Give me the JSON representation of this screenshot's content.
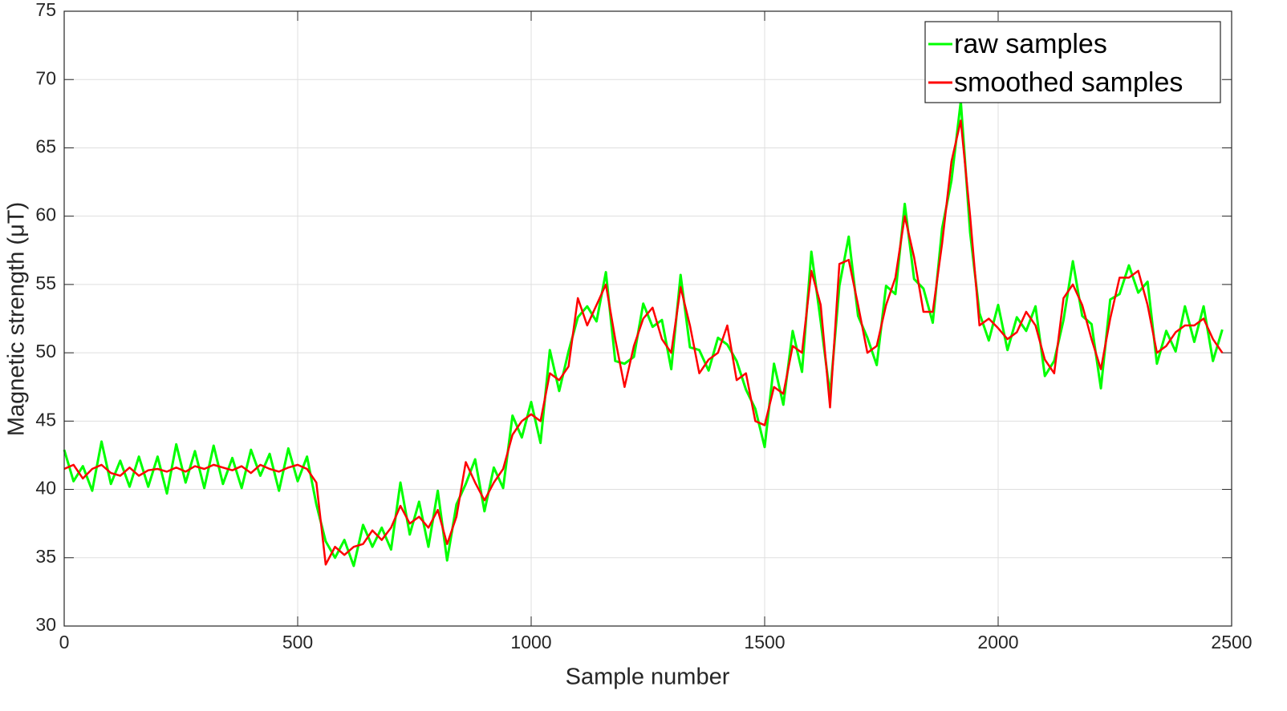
{
  "chart_data": {
    "type": "line",
    "xlabel": "Sample number",
    "ylabel": "Magnetic strength (μT)",
    "x": [
      0,
      20,
      40,
      60,
      80,
      100,
      120,
      140,
      160,
      180,
      200,
      220,
      240,
      260,
      280,
      300,
      320,
      340,
      360,
      380,
      400,
      420,
      440,
      460,
      480,
      500,
      520,
      540,
      560,
      580,
      600,
      620,
      640,
      660,
      680,
      700,
      720,
      740,
      760,
      780,
      800,
      820,
      840,
      860,
      880,
      900,
      920,
      940,
      960,
      980,
      1000,
      1020,
      1040,
      1060,
      1080,
      1100,
      1120,
      1140,
      1160,
      1180,
      1200,
      1220,
      1240,
      1260,
      1280,
      1300,
      1320,
      1340,
      1360,
      1380,
      1400,
      1420,
      1440,
      1460,
      1480,
      1500,
      1520,
      1540,
      1560,
      1580,
      1600,
      1620,
      1640,
      1660,
      1680,
      1700,
      1720,
      1740,
      1760,
      1780,
      1800,
      1820,
      1840,
      1860,
      1880,
      1900,
      1920,
      1940,
      1960,
      1980,
      2000,
      2020,
      2040,
      2060,
      2080,
      2100,
      2120,
      2140,
      2160,
      2180,
      2200,
      2220,
      2240,
      2260,
      2280,
      2300,
      2320,
      2340,
      2360,
      2380,
      2400,
      2420,
      2440,
      2460,
      2480
    ],
    "series": [
      {
        "name": "raw samples",
        "color": "#00ff00",
        "values": [
          42.9,
          40.6,
          41.7,
          39.9,
          43.5,
          40.4,
          42.1,
          40.2,
          42.4,
          40.2,
          42.4,
          39.7,
          43.3,
          40.5,
          42.8,
          40.1,
          43.2,
          40.4,
          42.3,
          40.1,
          42.9,
          41.0,
          42.6,
          39.9,
          43.0,
          40.6,
          42.4,
          38.9,
          36.2,
          35.0,
          36.3,
          34.4,
          37.4,
          35.8,
          37.2,
          35.6,
          40.5,
          36.7,
          39.1,
          35.8,
          39.9,
          34.8,
          38.9,
          40.4,
          42.2,
          38.4,
          41.6,
          40.1,
          45.4,
          43.8,
          46.4,
          43.4,
          50.2,
          47.2,
          50.1,
          52.6,
          53.4,
          52.3,
          55.9,
          49.4,
          49.2,
          49.7,
          53.6,
          51.9,
          52.4,
          48.8,
          55.7,
          50.4,
          50.2,
          48.7,
          51.1,
          50.6,
          49.4,
          47.3,
          45.9,
          43.1,
          49.2,
          46.2,
          51.6,
          48.6,
          57.4,
          52.3,
          46.9,
          54.9,
          58.5,
          52.7,
          51.1,
          49.1,
          54.9,
          54.3,
          60.9,
          55.4,
          54.7,
          52.2,
          59.1,
          62.6,
          68.4,
          58.8,
          52.9,
          50.9,
          53.5,
          50.2,
          52.6,
          51.6,
          53.4,
          48.3,
          49.4,
          52.4,
          56.7,
          52.7,
          52.1,
          47.4,
          53.9,
          54.3,
          56.4,
          54.4,
          55.2,
          49.2,
          51.6,
          50.1,
          53.4,
          50.8,
          53.4,
          49.4,
          51.7
        ]
      },
      {
        "name": "smoothed samples",
        "color": "#ff0000",
        "values": [
          41.5,
          41.8,
          40.8,
          41.5,
          41.8,
          41.2,
          41.0,
          41.6,
          41.0,
          41.4,
          41.5,
          41.3,
          41.6,
          41.3,
          41.7,
          41.5,
          41.8,
          41.6,
          41.4,
          41.7,
          41.2,
          41.8,
          41.5,
          41.3,
          41.6,
          41.8,
          41.5,
          40.5,
          34.5,
          35.8,
          35.2,
          35.8,
          36.0,
          37.0,
          36.3,
          37.2,
          38.8,
          37.5,
          38.0,
          37.2,
          38.5,
          36.0,
          38.0,
          42.0,
          40.5,
          39.2,
          40.5,
          41.5,
          44.0,
          45.0,
          45.5,
          45.0,
          48.5,
          48.0,
          49.0,
          54.0,
          52.0,
          53.5,
          55.0,
          51.0,
          47.5,
          50.5,
          52.5,
          53.3,
          51.0,
          50.0,
          54.8,
          52.0,
          48.5,
          49.5,
          50.0,
          52.0,
          48.0,
          48.5,
          45.0,
          44.7,
          47.5,
          47.0,
          50.5,
          50.0,
          56.0,
          53.5,
          46.0,
          56.5,
          56.8,
          53.5,
          50.0,
          50.5,
          53.5,
          55.5,
          60.0,
          57.0,
          53.0,
          53.0,
          58.0,
          64.0,
          67.0,
          60.0,
          52.0,
          52.5,
          51.8,
          51.0,
          51.5,
          53.0,
          52.0,
          49.5,
          48.5,
          54.0,
          55.0,
          53.5,
          51.0,
          48.8,
          52.5,
          55.5,
          55.5,
          56.0,
          53.5,
          50.0,
          50.5,
          51.5,
          52.0,
          52.0,
          52.5,
          51.0,
          50.0
        ]
      }
    ],
    "xlim": [
      0,
      2500
    ],
    "xticks": [
      0,
      500,
      1000,
      1500,
      2000,
      2500
    ],
    "ylim": [
      30,
      75
    ],
    "yticks": [
      30,
      35,
      40,
      45,
      50,
      55,
      60,
      65,
      70,
      75
    ],
    "grid": true,
    "legend": "northeast"
  }
}
